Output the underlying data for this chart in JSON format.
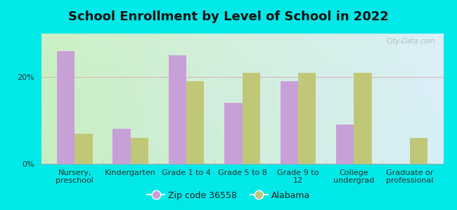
{
  "title": "School Enrollment by Level of School in 2022",
  "categories": [
    "Nursery,\npreschool",
    "Kindergarten",
    "Grade 1 to 4",
    "Grade 5 to 8",
    "Grade 9 to\n12",
    "College\nundergrad",
    "Graduate or\nprofessional"
  ],
  "zip_values": [
    26,
    8,
    25,
    14,
    19,
    9,
    0
  ],
  "alabama_values": [
    7,
    6,
    19,
    21,
    21,
    21,
    6
  ],
  "zip_color": "#c8a0d8",
  "alabama_color": "#c0c878",
  "background_outer": "#00e8e8",
  "background_grad_left": "#c8eec0",
  "background_grad_right": "#d8eef8",
  "ylabel": "",
  "yticks": [
    0,
    20
  ],
  "ylim": [
    0,
    30
  ],
  "bar_width": 0.32,
  "legend_zip_label": "Zip code 36558",
  "legend_alabama_label": "Alabama",
  "watermark": "City-Data.com",
  "title_fontsize": 13,
  "tick_fontsize": 8,
  "legend_fontsize": 9,
  "grid_color": "#ddaaaa",
  "grid_linewidth": 0.6
}
